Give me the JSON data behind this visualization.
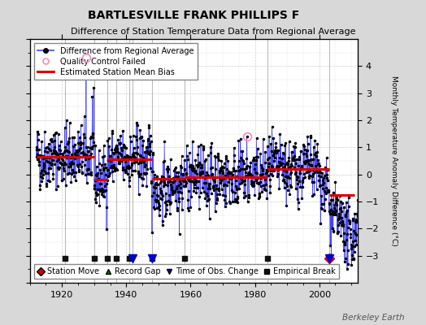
{
  "title": "BARTLESVILLE FRANK PHILLIPS F",
  "subtitle": "Difference of Station Temperature Data from Regional Average",
  "ylabel": "Monthly Temperature Anomaly Difference (°C)",
  "xlim": [
    1910,
    2012
  ],
  "ylim": [
    -4,
    5
  ],
  "yticks_right": [
    -3,
    -2,
    -1,
    0,
    1,
    2,
    3,
    4
  ],
  "yticks_left": [
    -4,
    -3,
    -2,
    -1,
    0,
    1,
    2,
    3,
    4,
    5
  ],
  "xticks": [
    1920,
    1940,
    1960,
    1980,
    2000
  ],
  "bg_color": "#d8d8d8",
  "plot_bg_color": "#ffffff",
  "grid_color": "#bbbbbb",
  "line_color": "#4444ff",
  "marker_color": "#000000",
  "bias_color": "#dd0000",
  "qc_color": "#ff88cc",
  "station_move_color": "#cc0000",
  "record_gap_color": "#007700",
  "tobs_color": "#0000cc",
  "emp_break_color": "#111111",
  "seed": 42,
  "start_year": 1912,
  "end_year": 2011,
  "bias_segments": [
    {
      "start": 1912,
      "end": 1921,
      "value": 0.65
    },
    {
      "start": 1921,
      "end": 1930,
      "value": 0.65
    },
    {
      "start": 1930,
      "end": 1934,
      "value": -0.2
    },
    {
      "start": 1934,
      "end": 1941,
      "value": 0.55
    },
    {
      "start": 1941,
      "end": 1948,
      "value": 0.55
    },
    {
      "start": 1948,
      "end": 1958,
      "value": -0.15
    },
    {
      "start": 1958,
      "end": 1984,
      "value": -0.1
    },
    {
      "start": 1984,
      "end": 2003,
      "value": 0.2
    },
    {
      "start": 2003,
      "end": 2011,
      "value": -0.75
    }
  ],
  "vlines": [
    1921,
    1930,
    1934,
    1937,
    1941,
    1948,
    1958,
    1984,
    2003
  ],
  "station_moves": [
    2003
  ],
  "record_gaps": [],
  "tobs_changes": [
    1942,
    1948,
    2003
  ],
  "emp_breaks": [
    1921,
    1930,
    1934,
    1937,
    1941,
    1948,
    1958,
    1984
  ],
  "qc_failed_years": [
    1927.5,
    1977.5
  ],
  "title_fontsize": 10,
  "subtitle_fontsize": 8,
  "tick_fontsize": 8,
  "legend_fontsize": 7,
  "watermark": "Berkeley Earth",
  "watermark_fontsize": 7.5
}
